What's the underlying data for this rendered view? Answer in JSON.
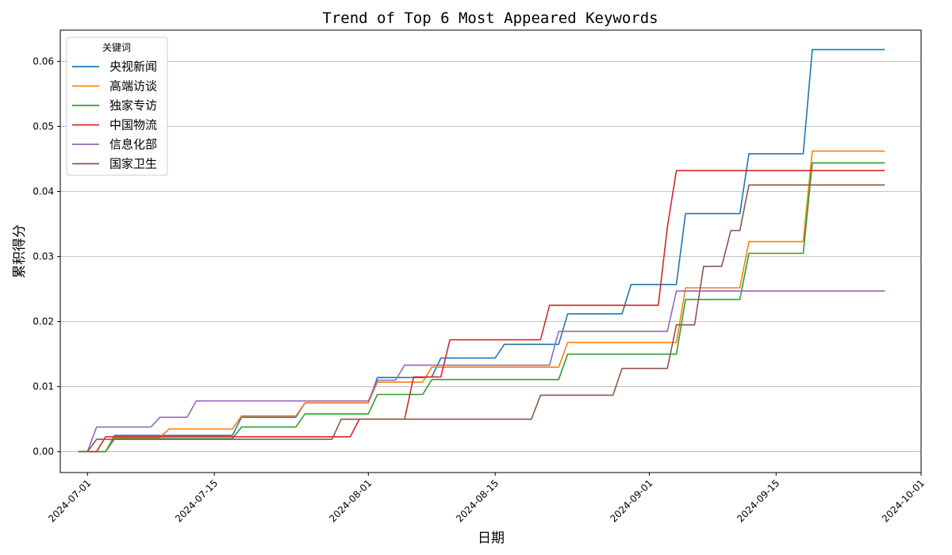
{
  "chart_data": {
    "type": "line",
    "title": "Trend of Top 6 Most Appeared Keywords",
    "xlabel": "日期",
    "ylabel": "累积得分",
    "x_range": [
      "2024-06-28",
      "2024-10-01"
    ],
    "ylim": [
      -0.0032,
      0.0648
    ],
    "x_ticks": [
      "2024-07-01",
      "2024-07-15",
      "2024-08-01",
      "2024-08-15",
      "2024-09-01",
      "2024-09-15",
      "2024-10-01"
    ],
    "y_ticks": [
      0.0,
      0.01,
      0.02,
      0.03,
      0.04,
      0.05,
      0.06
    ],
    "y_tick_labels": [
      "0.00",
      "0.01",
      "0.02",
      "0.03",
      "0.04",
      "0.05",
      "0.06"
    ],
    "grid": "horizontal",
    "legend": {
      "title": "关键词",
      "position": "top-left"
    },
    "series": [
      {
        "name": "央视新闻",
        "color": "#1f77b4",
        "points": [
          [
            "2024-06-30",
            0.0
          ],
          [
            "2024-07-03",
            0.0
          ],
          [
            "2024-07-04",
            0.0025
          ],
          [
            "2024-07-17",
            0.0025
          ],
          [
            "2024-07-18",
            0.0053
          ],
          [
            "2024-07-24",
            0.0053
          ],
          [
            "2024-07-25",
            0.0075
          ],
          [
            "2024-07-31",
            0.0075
          ],
          [
            "2024-08-01",
            0.0075
          ],
          [
            "2024-08-02",
            0.0114
          ],
          [
            "2024-08-07",
            0.0114
          ],
          [
            "2024-08-08",
            0.0115
          ],
          [
            "2024-08-09",
            0.0144
          ],
          [
            "2024-08-15",
            0.0144
          ],
          [
            "2024-08-16",
            0.0165
          ],
          [
            "2024-08-22",
            0.0165
          ],
          [
            "2024-08-23",
            0.0212
          ],
          [
            "2024-08-29",
            0.0212
          ],
          [
            "2024-08-30",
            0.0257
          ],
          [
            "2024-09-04",
            0.0257
          ],
          [
            "2024-09-05",
            0.0366
          ],
          [
            "2024-09-11",
            0.0366
          ],
          [
            "2024-09-12",
            0.0458
          ],
          [
            "2024-09-18",
            0.0458
          ],
          [
            "2024-09-19",
            0.0618
          ],
          [
            "2024-09-27",
            0.0618
          ]
        ]
      },
      {
        "name": "高端访谈",
        "color": "#ff7f0e",
        "points": [
          [
            "2024-06-30",
            0.0
          ],
          [
            "2024-07-03",
            0.0
          ],
          [
            "2024-07-04",
            0.0022
          ],
          [
            "2024-07-09",
            0.0022
          ],
          [
            "2024-07-10",
            0.0035
          ],
          [
            "2024-07-17",
            0.0035
          ],
          [
            "2024-07-18",
            0.0055
          ],
          [
            "2024-07-24",
            0.0055
          ],
          [
            "2024-07-25",
            0.0075
          ],
          [
            "2024-07-31",
            0.0075
          ],
          [
            "2024-08-01",
            0.0075
          ],
          [
            "2024-08-02",
            0.0107
          ],
          [
            "2024-08-07",
            0.0107
          ],
          [
            "2024-08-08",
            0.013
          ],
          [
            "2024-08-21",
            0.013
          ],
          [
            "2024-08-22",
            0.013
          ],
          [
            "2024-08-23",
            0.0168
          ],
          [
            "2024-09-04",
            0.0168
          ],
          [
            "2024-09-05",
            0.0252
          ],
          [
            "2024-09-11",
            0.0252
          ],
          [
            "2024-09-12",
            0.0323
          ],
          [
            "2024-09-18",
            0.0323
          ],
          [
            "2024-09-19",
            0.0462
          ],
          [
            "2024-09-27",
            0.0462
          ]
        ]
      },
      {
        "name": "独家专访",
        "color": "#2ca02c",
        "points": [
          [
            "2024-06-30",
            0.0
          ],
          [
            "2024-07-03",
            0.0
          ],
          [
            "2024-07-04",
            0.002
          ],
          [
            "2024-07-17",
            0.002
          ],
          [
            "2024-07-18",
            0.0038
          ],
          [
            "2024-07-24",
            0.0038
          ],
          [
            "2024-07-25",
            0.0058
          ],
          [
            "2024-07-31",
            0.0058
          ],
          [
            "2024-08-01",
            0.0058
          ],
          [
            "2024-08-02",
            0.0088
          ],
          [
            "2024-08-07",
            0.0088
          ],
          [
            "2024-08-08",
            0.0111
          ],
          [
            "2024-08-22",
            0.0111
          ],
          [
            "2024-08-23",
            0.015
          ],
          [
            "2024-09-04",
            0.015
          ],
          [
            "2024-09-05",
            0.0234
          ],
          [
            "2024-09-11",
            0.0234
          ],
          [
            "2024-09-12",
            0.0305
          ],
          [
            "2024-09-18",
            0.0305
          ],
          [
            "2024-09-19",
            0.0444
          ],
          [
            "2024-09-27",
            0.0444
          ]
        ]
      },
      {
        "name": "中国物流",
        "color": "#d62728",
        "points": [
          [
            "2024-06-30",
            0.0
          ],
          [
            "2024-07-02",
            0.0
          ],
          [
            "2024-07-03",
            0.0023
          ],
          [
            "2024-07-29",
            0.0023
          ],
          [
            "2024-07-30",
            0.0023
          ],
          [
            "2024-07-31",
            0.005
          ],
          [
            "2024-08-04",
            0.005
          ],
          [
            "2024-08-05",
            0.005
          ],
          [
            "2024-08-06",
            0.0115
          ],
          [
            "2024-08-08",
            0.0115
          ],
          [
            "2024-08-09",
            0.0115
          ],
          [
            "2024-08-10",
            0.0172
          ],
          [
            "2024-08-20",
            0.0172
          ],
          [
            "2024-08-21",
            0.0225
          ],
          [
            "2024-09-01",
            0.0225
          ],
          [
            "2024-09-02",
            0.0225
          ],
          [
            "2024-09-03",
            0.0345
          ],
          [
            "2024-09-04",
            0.0432
          ],
          [
            "2024-09-27",
            0.0432
          ]
        ]
      },
      {
        "name": "信息化部",
        "color": "#9467bd",
        "points": [
          [
            "2024-06-30",
            0.0
          ],
          [
            "2024-07-01",
            0.0
          ],
          [
            "2024-07-02",
            0.0038
          ],
          [
            "2024-07-08",
            0.0038
          ],
          [
            "2024-07-09",
            0.0053
          ],
          [
            "2024-07-12",
            0.0053
          ],
          [
            "2024-07-13",
            0.0078
          ],
          [
            "2024-07-31",
            0.0078
          ],
          [
            "2024-08-01",
            0.0078
          ],
          [
            "2024-08-02",
            0.011
          ],
          [
            "2024-08-03",
            0.011
          ],
          [
            "2024-08-04",
            0.011
          ],
          [
            "2024-08-05",
            0.0133
          ],
          [
            "2024-08-20",
            0.0133
          ],
          [
            "2024-08-21",
            0.0133
          ],
          [
            "2024-08-22",
            0.0185
          ],
          [
            "2024-09-02",
            0.0185
          ],
          [
            "2024-09-03",
            0.0185
          ],
          [
            "2024-09-04",
            0.0247
          ],
          [
            "2024-09-27",
            0.0247
          ]
        ]
      },
      {
        "name": "国家卫生",
        "color": "#8c564b",
        "points": [
          [
            "2024-06-30",
            0.0
          ],
          [
            "2024-07-01",
            0.0
          ],
          [
            "2024-07-02",
            0.0019
          ],
          [
            "2024-07-27",
            0.0019
          ],
          [
            "2024-07-28",
            0.0019
          ],
          [
            "2024-07-29",
            0.005
          ],
          [
            "2024-08-18",
            0.005
          ],
          [
            "2024-08-19",
            0.005
          ],
          [
            "2024-08-20",
            0.0087
          ],
          [
            "2024-08-27",
            0.0087
          ],
          [
            "2024-08-28",
            0.0087
          ],
          [
            "2024-08-29",
            0.0128
          ],
          [
            "2024-09-02",
            0.0128
          ],
          [
            "2024-09-03",
            0.0128
          ],
          [
            "2024-09-04",
            0.0195
          ],
          [
            "2024-09-06",
            0.0195
          ],
          [
            "2024-09-07",
            0.0285
          ],
          [
            "2024-09-09",
            0.0285
          ],
          [
            "2024-09-10",
            0.034
          ],
          [
            "2024-09-10",
            0.034
          ],
          [
            "2024-09-11",
            0.034
          ],
          [
            "2024-09-12",
            0.041
          ],
          [
            "2024-09-27",
            0.041
          ]
        ]
      }
    ]
  }
}
